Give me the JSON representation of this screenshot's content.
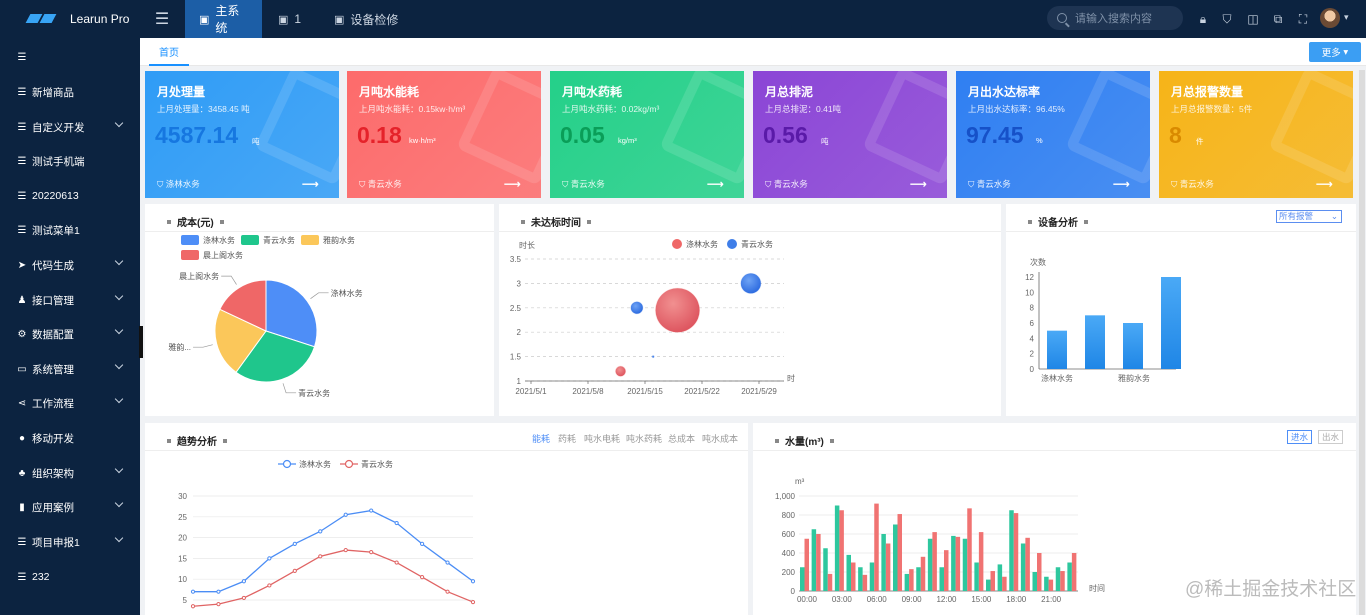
{
  "app": {
    "logo_text": "Learun Pro"
  },
  "header": {
    "tabs": [
      {
        "label": "主系统",
        "icon": "monitor-icon",
        "active": true
      },
      {
        "label": "1",
        "icon": "monitor-icon"
      },
      {
        "label": "设备检修",
        "icon": "monitor-icon"
      }
    ],
    "search_placeholder": "请输入搜索内容",
    "icons": [
      "lock-icon",
      "shirt-icon",
      "bell-icon",
      "translate-icon",
      "fullscreen-icon",
      "avatar"
    ]
  },
  "sidebar": {
    "items": [
      {
        "label": "",
        "icon": "list-icon",
        "caret": false
      },
      {
        "label": "新增商品",
        "icon": "list-icon",
        "caret": false
      },
      {
        "label": "自定义开发",
        "icon": "list-icon",
        "caret": true
      },
      {
        "label": "测试手机端",
        "icon": "list-icon",
        "caret": false
      },
      {
        "label": "20220613",
        "icon": "list-icon",
        "caret": false
      },
      {
        "label": "测试菜单1",
        "icon": "list-icon",
        "caret": false
      },
      {
        "label": "代码生成",
        "icon": "send-icon",
        "caret": true
      },
      {
        "label": "接口管理",
        "icon": "users-icon",
        "caret": true
      },
      {
        "label": "数据配置",
        "icon": "gear-icon",
        "caret": true
      },
      {
        "label": "系统管理",
        "icon": "desktop-icon",
        "caret": true
      },
      {
        "label": "工作流程",
        "icon": "share-icon",
        "caret": true
      },
      {
        "label": "移动开发",
        "icon": "github-icon",
        "caret": false
      },
      {
        "label": "组织架构",
        "icon": "sitemap-icon",
        "caret": true
      },
      {
        "label": "应用案例",
        "icon": "file-icon",
        "caret": true
      },
      {
        "label": "项目申报1",
        "icon": "list-icon",
        "caret": true
      },
      {
        "label": "232",
        "icon": "list-icon",
        "caret": false
      }
    ]
  },
  "page_tabs": {
    "home": "首页",
    "more": "更多"
  },
  "cards": [
    {
      "title": "月处理量",
      "sub": "上月处理量：3458.45 吨",
      "value": "4587.14",
      "unit": "吨",
      "footer": "涤林水务",
      "color": "#2f9cf6",
      "value_color": "#1677e0"
    },
    {
      "title": "月吨水能耗",
      "sub": "上月吨水能耗：0.15kw·h/m³",
      "value": "0.18",
      "unit": "kw·h/m³",
      "footer": "青云水务",
      "color": "#fd6b6b",
      "value_color": "#e5222a"
    },
    {
      "title": "月吨水药耗",
      "sub": "上月吨水药耗：0.02kg/m³",
      "value": "0.05",
      "unit": "kg/m³",
      "footer": "青云水务",
      "color": "#24d089",
      "value_color": "#0a9e58"
    },
    {
      "title": "月总排泥",
      "sub": "上月总排泥：0.41吨",
      "value": "0.56",
      "unit": "吨",
      "footer": "青云水务",
      "color": "#8b45d6",
      "value_color": "#5a1aa8"
    },
    {
      "title": "月出水达标率",
      "sub": "上月出水达标率：96.45%",
      "value": "97.45",
      "unit": "%",
      "footer": "青云水务",
      "color": "#2f7ff2",
      "value_color": "#1651c8"
    },
    {
      "title": "月总报警数量",
      "sub": "上月总报警数量：5件",
      "value": "8",
      "unit": "件",
      "footer": "青云水务",
      "color": "#f6b418",
      "value_color": "#d98a00"
    }
  ],
  "panels": {
    "cost": {
      "title": "成本(元)"
    },
    "time": {
      "title": "未达标时间"
    },
    "device": {
      "title": "设备分析",
      "select_value": "所有报警"
    },
    "trend": {
      "title": "趋势分析",
      "tabs": [
        "能耗",
        "药耗",
        "吨水电耗",
        "吨水药耗",
        "总成本",
        "吨水成本"
      ]
    },
    "water": {
      "title": "水量(m³)",
      "buttons": [
        "进水",
        "出水"
      ]
    }
  },
  "chart_data": [
    {
      "type": "pie",
      "legend": [
        "涤林水务",
        "青云水务",
        "雅韵水务",
        "晨上阁水务"
      ],
      "values": [
        30,
        30,
        22,
        18
      ],
      "colors": [
        "#4e8ef7",
        "#1fc68c",
        "#fbc75a",
        "#ef6767"
      ],
      "labels": [
        "涤林水务",
        "青云水务",
        "雅韵...",
        "晨上阁水务"
      ],
      "legend_position": "top-left"
    },
    {
      "type": "scatter",
      "ylabel": "时长",
      "xlabel": "时",
      "legend": [
        "涤林水务",
        "青云水务"
      ],
      "legend_colors": [
        "#ef6767",
        "#3f7ee8"
      ],
      "x_ticks": [
        "2021/5/1",
        "2021/5/8",
        "2021/5/15",
        "2021/5/22",
        "2021/5/29"
      ],
      "y_ticks": [
        "1",
        "1.5",
        "2",
        "2.5",
        "3",
        "3.5"
      ],
      "ylim": [
        1,
        3.5
      ],
      "series": [
        {
          "name": "涤林水务",
          "points": [
            {
              "x": "2021/5/12",
              "y": 1.2,
              "size": 5
            },
            {
              "x": "2021/5/19",
              "y": 2.45,
              "size": 22
            }
          ]
        },
        {
          "name": "青云水务",
          "points": [
            {
              "x": "2021/5/14",
              "y": 2.5,
              "size": 6
            },
            {
              "x": "2021/5/16",
              "y": 1.5,
              "size": 1
            },
            {
              "x": "2021/5/28",
              "y": 3.0,
              "size": 10
            }
          ]
        }
      ],
      "grid": true
    },
    {
      "type": "bar",
      "ylabel": "次数",
      "categories": [
        "涤林水务",
        "",
        "雅韵水务",
        ""
      ],
      "values": [
        5,
        7,
        6,
        12
      ],
      "y_ticks": [
        "0",
        "2",
        "4",
        "6",
        "8",
        "10",
        "12"
      ],
      "ylim": [
        0,
        12
      ],
      "color": "#3a9bf2"
    },
    {
      "type": "line",
      "legend": [
        "涤林水务",
        "青云水务"
      ],
      "y_ticks": [
        "5",
        "10",
        "15",
        "20",
        "25",
        "30"
      ],
      "ylim": [
        5,
        30
      ],
      "series": [
        {
          "name": "涤林水务",
          "color": "#4b8df5",
          "values": [
            7,
            7,
            9.5,
            15,
            18.5,
            21.5,
            25.5,
            26.5,
            23.5,
            18.5,
            14,
            9.5
          ]
        },
        {
          "name": "青云水务",
          "color": "#e06464",
          "values": [
            3.5,
            4,
            5.5,
            8.5,
            12,
            15.5,
            17,
            16.5,
            14,
            10.5,
            7,
            4.5
          ]
        }
      ]
    },
    {
      "type": "bar",
      "ylabel": "m³",
      "xlabel": "时间",
      "x_ticks": [
        "00:00",
        "03:00",
        "06:00",
        "09:00",
        "12:00",
        "15:00",
        "18:00",
        "21:00"
      ],
      "y_ticks": [
        "0",
        "200",
        "400",
        "600",
        "800",
        "1,000"
      ],
      "ylim": [
        0,
        1000
      ],
      "series": [
        {
          "name": "进水",
          "color": "#2ec79e",
          "values": [
            250,
            650,
            450,
            900,
            380,
            250,
            300,
            600,
            700,
            180,
            250,
            550,
            250,
            580,
            550,
            300,
            120,
            280,
            850,
            500,
            200,
            150,
            250,
            300
          ]
        },
        {
          "name": "出水",
          "color": "#f07372",
          "values": [
            550,
            600,
            180,
            850,
            300,
            170,
            920,
            500,
            810,
            230,
            360,
            620,
            430,
            570,
            870,
            620,
            210,
            150,
            820,
            560,
            400,
            120,
            210,
            400
          ]
        }
      ]
    }
  ],
  "watermark": "@稀土掘金技术社区"
}
